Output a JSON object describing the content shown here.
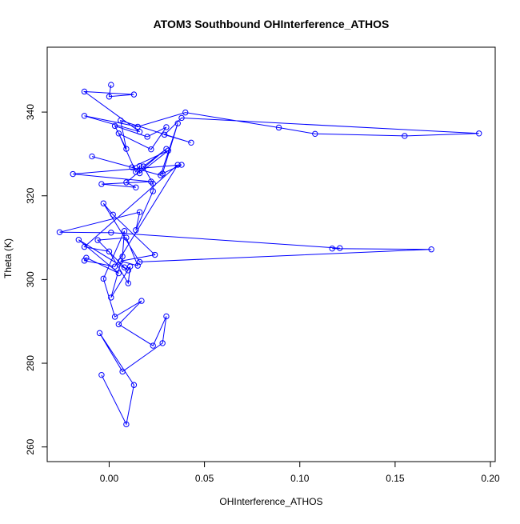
{
  "chart_data": {
    "type": "line",
    "title": "ATOM3 Southbound OHInterference_ATHOS",
    "xlabel": "OHInterference_ATHOS",
    "ylabel": "Theta (K)",
    "xlim": [
      -0.0325,
      0.2025
    ],
    "ylim": [
      256.5,
      355.5
    ],
    "xticks": [
      0.0,
      0.05,
      0.1,
      0.15,
      0.2
    ],
    "xtick_labels": [
      "0.00",
      "0.05",
      "0.10",
      "0.15",
      "0.20"
    ],
    "yticks": [
      260,
      280,
      300,
      320,
      340
    ],
    "ytick_labels": [
      "260",
      "280",
      "300",
      "320",
      "340"
    ],
    "grid": false,
    "legend": "none",
    "line_color": "#0000ff",
    "marker": "open-circle",
    "series": [
      {
        "x": [
          0.001,
          0.0,
          0.013,
          -0.013,
          0.016,
          -0.013,
          0.015,
          0.04,
          0.089,
          0.108,
          0.155,
          0.194,
          0.038,
          0.029,
          0.043,
          0.006,
          0.009,
          0.003,
          0.02,
          0.03,
          0.022,
          0.005,
          0.014,
          0.016,
          0.016,
          0.031,
          0.012,
          -0.009,
          0.027,
          0.036,
          0.028,
          0.038,
          -0.019,
          0.022,
          -0.004,
          0.014,
          0.009,
          0.03,
          0.018,
          0.023,
          0.023,
          0.014,
          0.016,
          -0.026,
          0.001,
          0.121,
          0.117,
          0.169,
          0.016,
          -0.003,
          0.002,
          0.024,
          0.006,
          0.015,
          0.009,
          -0.006,
          0.008,
          0.01,
          -0.016,
          0.005,
          -0.012,
          -0.013,
          0.003,
          0.036,
          -0.013,
          0.0,
          0.01,
          0.011,
          0.001,
          0.007,
          0.008,
          -0.003,
          0.003,
          0.017,
          0.005,
          0.023,
          0.03,
          0.028,
          0.007,
          -0.005,
          0.013,
          0.009,
          -0.004
        ],
        "y": [
          346.5,
          343.7,
          344.2,
          344.9,
          335.3,
          339.1,
          336.5,
          339.9,
          336.3,
          334.8,
          334.3,
          334.9,
          338.6,
          334.6,
          332.7,
          338.0,
          331.2,
          336.7,
          334.1,
          336.4,
          331.1,
          334.9,
          325.7,
          327.1,
          325.4,
          330.8,
          326.8,
          329.4,
          324.9,
          337.3,
          325.3,
          327.4,
          325.2,
          323.4,
          322.8,
          322.0,
          323.2,
          331.2,
          327.0,
          322.9,
          321.1,
          311.8,
          316.1,
          311.3,
          311.2,
          307.5,
          307.4,
          307.2,
          304.2,
          318.2,
          315.5,
          305.9,
          304.4,
          303.3,
          310.0,
          309.4,
          302.9,
          302.2,
          309.5,
          301.5,
          305.2,
          304.5,
          303.1,
          327.4,
          307.8,
          306.7,
          299.1,
          303.1,
          295.7,
          305.5,
          311.6,
          300.2,
          291.1,
          294.9,
          289.3,
          284.2,
          291.2,
          284.8,
          278.0,
          287.2,
          274.8,
          265.4,
          277.2
        ]
      }
    ]
  }
}
